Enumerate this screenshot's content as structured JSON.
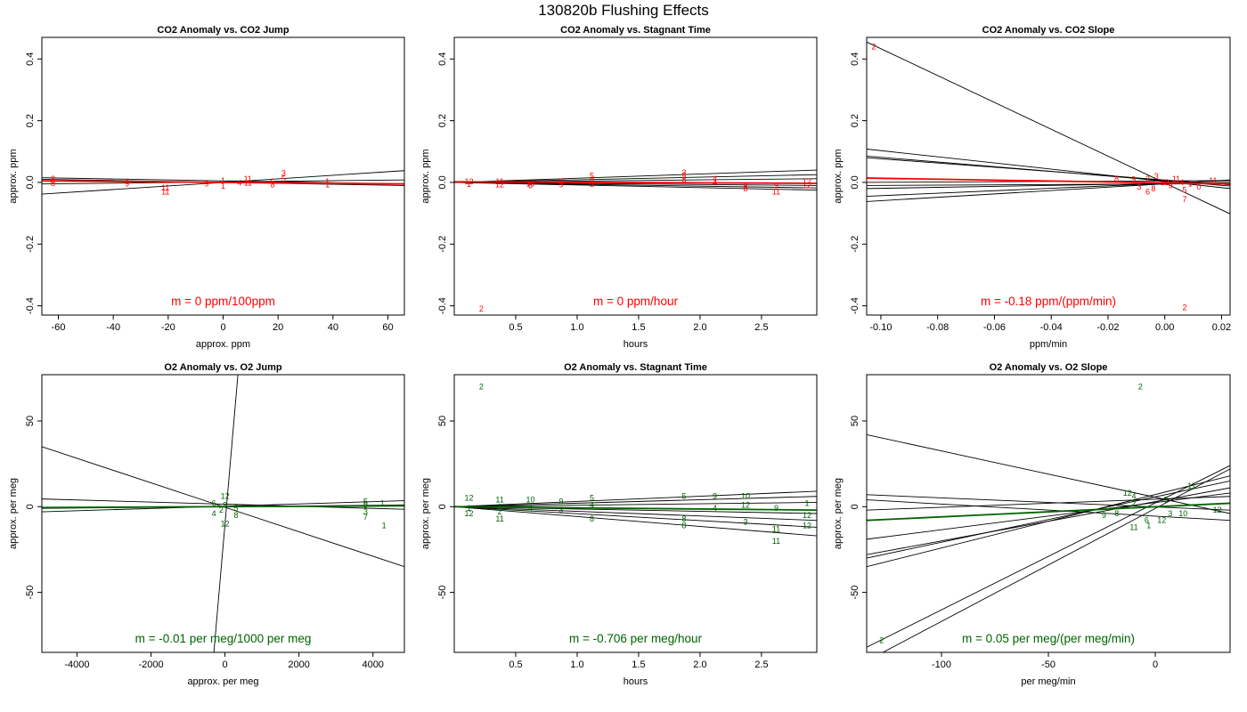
{
  "title": "130820b   Flushing Effects",
  "colors": {
    "co2": "#ff0000",
    "o2": "#006400",
    "line": "#000000",
    "frame": "#000000"
  },
  "chart_data": [
    {
      "id": "co2-jump",
      "type": "scatter",
      "title": "CO2 Anomaly vs. CO2 Jump",
      "xlabel": "approx. ppm",
      "ylabel": "approx. ppm",
      "xlim": [
        -66,
        66
      ],
      "ylim": [
        -0.43,
        0.47
      ],
      "xticks": [
        -60,
        -40,
        -20,
        0,
        20,
        40,
        60
      ],
      "yticks": [
        -0.4,
        -0.2,
        0.0,
        0.2,
        0.4
      ],
      "color": "co2",
      "annotation": "m = 0 ppm/100ppm",
      "fit_lines": [
        [
          -66,
          -0.038,
          66,
          0.038
        ],
        [
          -66,
          0.01,
          66,
          -0.01
        ],
        [
          -66,
          0.015,
          66,
          -0.005
        ],
        [
          -66,
          -0.005,
          66,
          0.008
        ]
      ],
      "main_fit": [
        -66,
        0.005,
        66,
        -0.005
      ],
      "points": [
        {
          "label": "2",
          "x": -62,
          "y": 0.012
        },
        {
          "label": "6",
          "x": -62,
          "y": 0.003
        },
        {
          "label": "8",
          "x": -62,
          "y": -0.003
        },
        {
          "label": "4",
          "x": -35,
          "y": 0.002
        },
        {
          "label": "9",
          "x": -35,
          "y": -0.005
        },
        {
          "label": "11",
          "x": -21,
          "y": -0.018
        },
        {
          "label": "11",
          "x": -21,
          "y": -0.03
        },
        {
          "label": "9",
          "x": -6,
          "y": -0.005
        },
        {
          "label": "1",
          "x": 0,
          "y": 0.005
        },
        {
          "label": "1",
          "x": 0,
          "y": -0.012
        },
        {
          "label": "4",
          "x": 6,
          "y": -0.002
        },
        {
          "label": "11",
          "x": 9,
          "y": 0.012
        },
        {
          "label": "11",
          "x": 9,
          "y": -0.002
        },
        {
          "label": "3",
          "x": 22,
          "y": 0.03
        },
        {
          "label": "5",
          "x": 22,
          "y": 0.012
        },
        {
          "label": "6",
          "x": 18,
          "y": 0.002
        },
        {
          "label": "8",
          "x": 18,
          "y": -0.008
        },
        {
          "label": "1",
          "x": 38,
          "y": 0.002
        },
        {
          "label": "1",
          "x": 38,
          "y": -0.008
        }
      ]
    },
    {
      "id": "co2-stagnant",
      "type": "scatter",
      "title": "CO2 Anomaly vs. Stagnant Time",
      "xlabel": "hours",
      "ylabel": "approx. ppm",
      "xlim": [
        0.0,
        2.95
      ],
      "ylim": [
        -0.43,
        0.47
      ],
      "xticks": [
        0.5,
        1.0,
        1.5,
        2.0,
        2.5
      ],
      "yticks": [
        -0.4,
        -0.2,
        0.0,
        0.2,
        0.4
      ],
      "color": "co2",
      "annotation": "m = 0 ppm/hour",
      "fit_lines": [
        [
          0,
          0,
          2.95,
          0.04
        ],
        [
          0,
          0,
          2.95,
          0.025
        ],
        [
          0,
          0,
          2.95,
          -0.025
        ],
        [
          0,
          0,
          2.95,
          -0.01
        ],
        [
          0,
          0,
          2.95,
          -0.018
        ],
        [
          0,
          0,
          2.95,
          0.012
        ]
      ],
      "main_fit": [
        0,
        0.002,
        2.95,
        -0.003
      ],
      "points": [
        {
          "label": "12",
          "x": 0.12,
          "y": 0.002
        },
        {
          "label": "1",
          "x": 0.12,
          "y": -0.006
        },
        {
          "label": "11",
          "x": 0.37,
          "y": 0.002
        },
        {
          "label": "12",
          "x": 0.37,
          "y": -0.008
        },
        {
          "label": "10",
          "x": 0.62,
          "y": -0.004
        },
        {
          "label": "5",
          "x": 0.62,
          "y": -0.01
        },
        {
          "label": "9",
          "x": 0.87,
          "y": 0.002
        },
        {
          "label": "9",
          "x": 0.87,
          "y": -0.008
        },
        {
          "label": "5",
          "x": 1.12,
          "y": 0.022
        },
        {
          "label": "8",
          "x": 1.12,
          "y": 0.008
        },
        {
          "label": "3",
          "x": 1.12,
          "y": -0.006
        },
        {
          "label": "3",
          "x": 1.87,
          "y": 0.032
        },
        {
          "label": "5",
          "x": 1.87,
          "y": 0.022
        },
        {
          "label": "8",
          "x": 1.87,
          "y": 0.008
        },
        {
          "label": "4",
          "x": 2.12,
          "y": 0.012
        },
        {
          "label": "4",
          "x": 2.12,
          "y": -0.002
        },
        {
          "label": "8",
          "x": 2.37,
          "y": -0.012
        },
        {
          "label": "8",
          "x": 2.37,
          "y": -0.02
        },
        {
          "label": "9",
          "x": 2.62,
          "y": -0.01
        },
        {
          "label": "11",
          "x": 2.62,
          "y": -0.03
        },
        {
          "label": "12",
          "x": 2.87,
          "y": 0.002
        },
        {
          "label": "12",
          "x": 2.87,
          "y": -0.01
        },
        {
          "label": "2",
          "x": 0.22,
          "y": -0.41
        }
      ]
    },
    {
      "id": "co2-slope",
      "type": "scatter",
      "title": "CO2 Anomaly vs. CO2 Slope",
      "xlabel": "ppm/min",
      "ylabel": "approx. ppm",
      "xlim": [
        -0.105,
        0.023
      ],
      "ylim": [
        -0.43,
        0.47
      ],
      "xticks": [
        -0.1,
        -0.08,
        -0.06,
        -0.04,
        -0.02,
        0.0,
        0.02
      ],
      "yticks": [
        -0.4,
        -0.2,
        0.0,
        0.2,
        0.4
      ],
      "color": "co2",
      "annotation": "m = -0.18 ppm/(ppm/min)",
      "fit_lines": [
        [
          -0.105,
          0.455,
          0.023,
          -0.102
        ],
        [
          -0.105,
          0.108,
          0.023,
          -0.02
        ],
        [
          -0.105,
          0.085,
          0.023,
          -0.012
        ],
        [
          -0.105,
          0.08,
          0.023,
          -0.008
        ],
        [
          -0.105,
          -0.02,
          0.023,
          0.0
        ],
        [
          -0.105,
          -0.045,
          0.023,
          0.006
        ],
        [
          -0.105,
          -0.062,
          0.023,
          0.008
        ],
        [
          -0.105,
          -0.01,
          0.023,
          -0.004
        ],
        [
          -0.105,
          0.0,
          0.023,
          0.006
        ]
      ],
      "main_fit": [
        -0.105,
        0.014,
        0.023,
        -0.005
      ],
      "points": [
        {
          "label": "2",
          "x": -0.1025,
          "y": 0.44
        },
        {
          "label": "2",
          "x": 0.007,
          "y": -0.405
        },
        {
          "label": "8",
          "x": -0.017,
          "y": 0.012
        },
        {
          "label": "9",
          "x": -0.011,
          "y": 0.01
        },
        {
          "label": "3",
          "x": -0.009,
          "y": -0.015
        },
        {
          "label": "2",
          "x": -0.006,
          "y": 0.012
        },
        {
          "label": "6",
          "x": -0.006,
          "y": -0.03
        },
        {
          "label": "3",
          "x": -0.003,
          "y": 0.02
        },
        {
          "label": "8",
          "x": -0.004,
          "y": -0.02
        },
        {
          "label": "11",
          "x": 0.004,
          "y": 0.012
        },
        {
          "label": "4",
          "x": 0.006,
          "y": 0.0
        },
        {
          "label": "1",
          "x": 0.009,
          "y": -0.005
        },
        {
          "label": "7",
          "x": 0.007,
          "y": -0.055
        },
        {
          "label": "5",
          "x": 0.007,
          "y": -0.025
        },
        {
          "label": "11",
          "x": 0.017,
          "y": 0.005
        },
        {
          "label": "0",
          "x": 0.012,
          "y": -0.015
        },
        {
          "label": "12",
          "x": 0.0,
          "y": 0.0
        },
        {
          "label": "9",
          "x": 0.002,
          "y": -0.01
        }
      ]
    },
    {
      "id": "o2-jump",
      "type": "scatter",
      "title": "O2 Anomaly vs. O2 Jump",
      "xlabel": "approx. per meg",
      "ylabel": "approx. per meg",
      "xlim": [
        -4950,
        4850
      ],
      "ylim": [
        -85,
        77
      ],
      "xticks": [
        -4000,
        -2000,
        0,
        2000,
        4000
      ],
      "yticks": [
        -50,
        0,
        50
      ],
      "color": "o2",
      "annotation": "m = -0.01 per meg/1000 per meg",
      "fit_lines": [
        [
          -4950,
          35,
          4850,
          -35
        ],
        [
          -4950,
          4.5,
          4850,
          -1.5
        ],
        [
          -4950,
          -3,
          4850,
          3.5
        ],
        [
          -4950,
          -1,
          4850,
          1
        ],
        [
          -300,
          -85,
          350,
          77
        ]
      ],
      "main_fit": [
        -4950,
        -0.5,
        4850,
        0.5
      ],
      "points": [
        {
          "label": "12",
          "x": 0,
          "y": 6
        },
        {
          "label": "12",
          "x": 0,
          "y": -10
        },
        {
          "label": "6",
          "x": -300,
          "y": 2
        },
        {
          "label": "4",
          "x": -300,
          "y": -4
        },
        {
          "label": "9",
          "x": 0,
          "y": 1
        },
        {
          "label": "5",
          "x": 300,
          "y": -1
        },
        {
          "label": "8",
          "x": 300,
          "y": -5
        },
        {
          "label": "2",
          "x": -100,
          "y": -2
        },
        {
          "label": "5",
          "x": 3800,
          "y": 3
        },
        {
          "label": "1",
          "x": 4250,
          "y": 2
        },
        {
          "label": "9",
          "x": 3800,
          "y": 1
        },
        {
          "label": "3",
          "x": 3800,
          "y": -3
        },
        {
          "label": "7",
          "x": 3800,
          "y": -6
        },
        {
          "label": "1",
          "x": 4300,
          "y": -11
        }
      ]
    },
    {
      "id": "o2-stagnant",
      "type": "scatter",
      "title": "O2 Anomaly vs. Stagnant Time",
      "xlabel": "hours",
      "ylabel": "approx. per meg",
      "xlim": [
        0.0,
        2.95
      ],
      "ylim": [
        -85,
        77
      ],
      "xticks": [
        0.5,
        1.0,
        1.5,
        2.0,
        2.5
      ],
      "yticks": [
        -50,
        0,
        50
      ],
      "color": "o2",
      "annotation": "m = -0.706 per meg/hour",
      "fit_lines": [
        [
          0,
          0,
          2.95,
          9
        ],
        [
          0,
          0,
          2.95,
          6
        ],
        [
          0,
          0,
          2.95,
          2.5
        ],
        [
          0,
          0,
          2.95,
          -4
        ],
        [
          0,
          0,
          2.95,
          -8
        ],
        [
          0,
          0,
          2.95,
          -12
        ],
        [
          0,
          0,
          2.95,
          -17
        ]
      ],
      "main_fit": [
        0,
        0,
        2.95,
        -2
      ],
      "points": [
        {
          "label": "12",
          "x": 0.12,
          "y": 5
        },
        {
          "label": "1",
          "x": 0.12,
          "y": -1
        },
        {
          "label": "12",
          "x": 0.12,
          "y": -4
        },
        {
          "label": "11",
          "x": 0.37,
          "y": 4
        },
        {
          "label": "1",
          "x": 0.37,
          "y": 0
        },
        {
          "label": "2",
          "x": 0.37,
          "y": -3
        },
        {
          "label": "11",
          "x": 0.37,
          "y": -7
        },
        {
          "label": "10",
          "x": 0.62,
          "y": 4
        },
        {
          "label": "4",
          "x": 0.62,
          "y": -1
        },
        {
          "label": "9",
          "x": 0.87,
          "y": 3
        },
        {
          "label": "3",
          "x": 0.87,
          "y": -2
        },
        {
          "label": "5",
          "x": 1.12,
          "y": 5
        },
        {
          "label": "4",
          "x": 1.12,
          "y": 1
        },
        {
          "label": "8",
          "x": 1.12,
          "y": -7
        },
        {
          "label": "5",
          "x": 1.87,
          "y": 6
        },
        {
          "label": "8",
          "x": 1.87,
          "y": -7
        },
        {
          "label": "8",
          "x": 1.87,
          "y": -11
        },
        {
          "label": "9",
          "x": 2.12,
          "y": 6
        },
        {
          "label": "4",
          "x": 2.12,
          "y": -1
        },
        {
          "label": "10",
          "x": 2.37,
          "y": 6
        },
        {
          "label": "12",
          "x": 2.37,
          "y": 1
        },
        {
          "label": "3",
          "x": 2.37,
          "y": -9
        },
        {
          "label": "9",
          "x": 2.62,
          "y": -1
        },
        {
          "label": "11",
          "x": 2.62,
          "y": -13
        },
        {
          "label": "11",
          "x": 2.62,
          "y": -20
        },
        {
          "label": "1",
          "x": 2.87,
          "y": 2
        },
        {
          "label": "12",
          "x": 2.87,
          "y": -5
        },
        {
          "label": "12",
          "x": 2.87,
          "y": -11
        },
        {
          "label": "2",
          "x": 0.22,
          "y": 70
        }
      ]
    },
    {
      "id": "o2-slope",
      "type": "scatter",
      "title": "O2 Anomaly vs. O2 Slope",
      "xlabel": "per meg/min",
      "ylabel": "approx. per meg",
      "xlim": [
        -135,
        35
      ],
      "ylim": [
        -85,
        77
      ],
      "xticks": [
        -100,
        -50,
        0
      ],
      "yticks": [
        -50,
        0,
        50
      ],
      "color": "o2",
      "annotation": "m = 0.05 per meg/(per meg/min)",
      "fit_lines": [
        [
          -135,
          42,
          35,
          -4
        ],
        [
          -135,
          7,
          35,
          -2
        ],
        [
          -135,
          4,
          35,
          -8
        ],
        [
          -135,
          -19,
          35,
          8
        ],
        [
          -135,
          -28,
          35,
          11
        ],
        [
          -135,
          -30,
          35,
          15
        ],
        [
          -135,
          -35,
          35,
          18
        ],
        [
          -135,
          -82,
          35,
          24
        ],
        [
          -135,
          -90,
          35,
          22
        ],
        [
          -135,
          -2,
          35,
          6
        ]
      ],
      "main_fit": [
        -135,
        -8,
        35,
        2
      ],
      "points": [
        {
          "label": "2",
          "x": -7,
          "y": 70
        },
        {
          "label": "2",
          "x": -128,
          "y": -78
        },
        {
          "label": "11",
          "x": 17,
          "y": 12
        },
        {
          "label": "12",
          "x": -13,
          "y": 8
        },
        {
          "label": "4",
          "x": -10,
          "y": 6
        },
        {
          "label": "2",
          "x": -10,
          "y": 2
        },
        {
          "label": "8",
          "x": -18,
          "y": -4
        },
        {
          "label": "9",
          "x": -24,
          "y": -5
        },
        {
          "label": "11",
          "x": -10,
          "y": -12
        },
        {
          "label": "1",
          "x": -3,
          "y": -11
        },
        {
          "label": "6",
          "x": -4,
          "y": -8
        },
        {
          "label": "12",
          "x": 3,
          "y": -8
        },
        {
          "label": "10",
          "x": 13,
          "y": -4
        },
        {
          "label": "12",
          "x": 29,
          "y": -2
        },
        {
          "label": "3",
          "x": 7,
          "y": -4
        },
        {
          "label": "9",
          "x": 5,
          "y": 4
        }
      ]
    }
  ]
}
